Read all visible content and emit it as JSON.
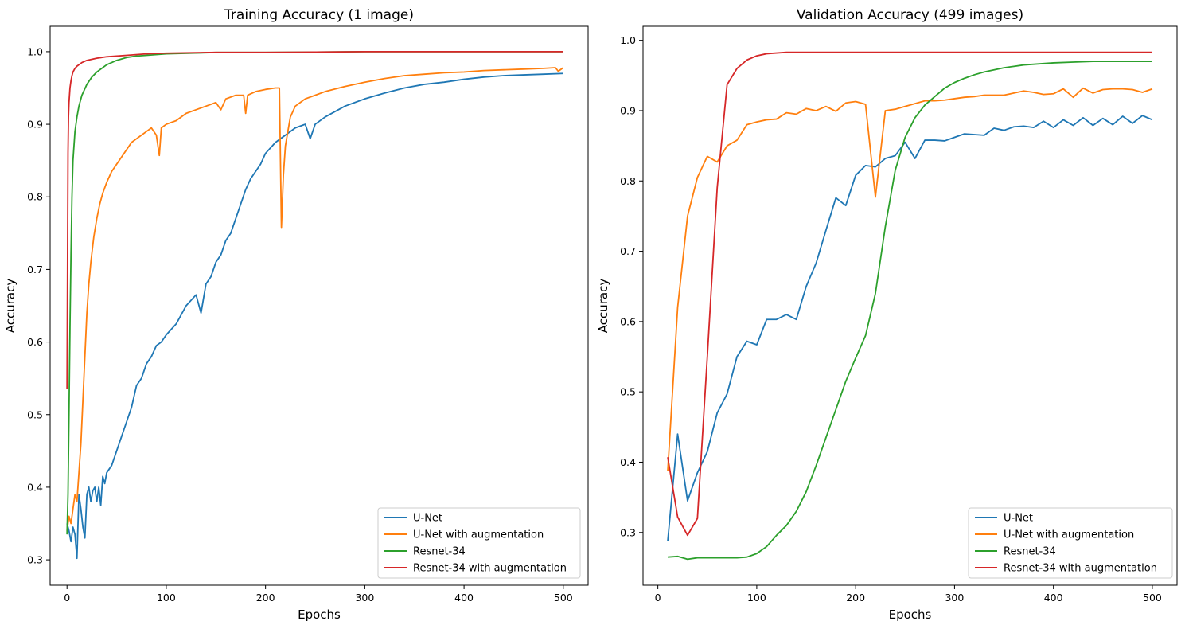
{
  "chart_data": [
    {
      "type": "line",
      "title": "Training Accuracy (1 image)",
      "xlabel": "Epochs",
      "ylabel": "Accuracy",
      "xlim": [
        -17,
        525
      ],
      "ylim": [
        0.265,
        1.035
      ],
      "xticks": [
        0,
        100,
        200,
        300,
        400,
        500
      ],
      "xtick_labels": [
        "0",
        "100",
        "200",
        "300",
        "400",
        "500"
      ],
      "yticks": [
        0.3,
        0.4,
        0.5,
        0.6,
        0.7,
        0.8,
        0.9,
        1.0
      ],
      "ytick_labels": [
        "0.3",
        "0.4",
        "0.5",
        "0.6",
        "0.7",
        "0.8",
        "0.9",
        "1.0"
      ],
      "grid": false,
      "legend": "lower-right",
      "series": [
        {
          "name": "U-Net",
          "color": "#1f77b4",
          "x": [
            0,
            2,
            4,
            6,
            8,
            10,
            12,
            14,
            16,
            18,
            20,
            22,
            24,
            26,
            28,
            30,
            32,
            34,
            36,
            38,
            40,
            45,
            50,
            55,
            60,
            65,
            70,
            75,
            80,
            85,
            90,
            95,
            100,
            110,
            120,
            130,
            135,
            140,
            145,
            150,
            155,
            160,
            165,
            170,
            175,
            180,
            185,
            190,
            195,
            200,
            210,
            220,
            230,
            240,
            245,
            250,
            260,
            280,
            300,
            320,
            340,
            360,
            380,
            400,
            420,
            440,
            460,
            480,
            500
          ],
          "y": [
            0.35,
            0.34,
            0.325,
            0.345,
            0.335,
            0.302,
            0.39,
            0.37,
            0.345,
            0.33,
            0.39,
            0.4,
            0.38,
            0.395,
            0.4,
            0.38,
            0.4,
            0.375,
            0.415,
            0.405,
            0.42,
            0.43,
            0.45,
            0.47,
            0.49,
            0.51,
            0.54,
            0.55,
            0.57,
            0.58,
            0.595,
            0.6,
            0.61,
            0.625,
            0.65,
            0.665,
            0.64,
            0.68,
            0.69,
            0.71,
            0.72,
            0.74,
            0.75,
            0.77,
            0.79,
            0.81,
            0.825,
            0.835,
            0.845,
            0.86,
            0.875,
            0.885,
            0.895,
            0.9,
            0.88,
            0.9,
            0.91,
            0.925,
            0.935,
            0.943,
            0.95,
            0.955,
            0.958,
            0.962,
            0.965,
            0.967,
            0.968,
            0.969,
            0.97
          ]
        },
        {
          "name": "U-Net with augmentation",
          "color": "#ff7f0e",
          "x": [
            0,
            2,
            4,
            6,
            8,
            10,
            12,
            14,
            16,
            18,
            20,
            22,
            24,
            27,
            30,
            33,
            36,
            40,
            45,
            50,
            55,
            60,
            65,
            70,
            75,
            80,
            85,
            90,
            93,
            95,
            100,
            110,
            120,
            130,
            140,
            150,
            155,
            160,
            170,
            178,
            180,
            182,
            190,
            200,
            210,
            214,
            216,
            218,
            220,
            225,
            230,
            240,
            250,
            260,
            280,
            300,
            320,
            340,
            360,
            380,
            400,
            420,
            440,
            460,
            480,
            492,
            495,
            500
          ],
          "y": [
            0.34,
            0.36,
            0.35,
            0.37,
            0.39,
            0.38,
            0.42,
            0.46,
            0.52,
            0.58,
            0.64,
            0.68,
            0.71,
            0.745,
            0.77,
            0.79,
            0.805,
            0.82,
            0.835,
            0.845,
            0.855,
            0.865,
            0.875,
            0.88,
            0.885,
            0.89,
            0.895,
            0.885,
            0.857,
            0.895,
            0.9,
            0.905,
            0.915,
            0.92,
            0.925,
            0.93,
            0.92,
            0.935,
            0.94,
            0.94,
            0.915,
            0.94,
            0.945,
            0.948,
            0.95,
            0.95,
            0.758,
            0.83,
            0.87,
            0.91,
            0.925,
            0.935,
            0.94,
            0.945,
            0.952,
            0.958,
            0.963,
            0.967,
            0.969,
            0.971,
            0.972,
            0.974,
            0.975,
            0.976,
            0.977,
            0.978,
            0.973,
            0.978
          ]
        },
        {
          "name": "Resnet-34",
          "color": "#2ca02c",
          "x": [
            0,
            1,
            2,
            3,
            4,
            5,
            6,
            8,
            10,
            12,
            15,
            20,
            25,
            30,
            40,
            50,
            60,
            70,
            80,
            100,
            150,
            200,
            300,
            400,
            500
          ],
          "y": [
            0.335,
            0.39,
            0.5,
            0.62,
            0.72,
            0.8,
            0.85,
            0.89,
            0.91,
            0.925,
            0.94,
            0.955,
            0.965,
            0.972,
            0.982,
            0.988,
            0.992,
            0.994,
            0.995,
            0.997,
            0.999,
            0.999,
            1.0,
            1.0,
            1.0
          ]
        },
        {
          "name": "Resnet-34 with augmentation",
          "color": "#d62728",
          "x": [
            0,
            0.5,
            1,
            1.5,
            2,
            3,
            4,
            5,
            6,
            8,
            10,
            15,
            20,
            30,
            40,
            60,
            80,
            100,
            150,
            200,
            300,
            400,
            500
          ],
          "y": [
            0.535,
            0.7,
            0.86,
            0.91,
            0.93,
            0.95,
            0.96,
            0.967,
            0.972,
            0.977,
            0.98,
            0.985,
            0.988,
            0.991,
            0.993,
            0.995,
            0.997,
            0.998,
            0.999,
            0.999,
            1.0,
            1.0,
            1.0
          ]
        }
      ]
    },
    {
      "type": "line",
      "title": "Validation Accuracy (499 images)",
      "xlabel": "Epochs",
      "ylabel": "Accuracy",
      "xlim": [
        -15,
        525
      ],
      "ylim": [
        0.225,
        1.02
      ],
      "xticks": [
        0,
        100,
        200,
        300,
        400,
        500
      ],
      "xtick_labels": [
        "0",
        "100",
        "200",
        "300",
        "400",
        "500"
      ],
      "yticks": [
        0.3,
        0.4,
        0.5,
        0.6,
        0.7,
        0.8,
        0.9,
        1.0
      ],
      "ytick_labels": [
        "0.3",
        "0.4",
        "0.5",
        "0.6",
        "0.7",
        "0.8",
        "0.9",
        "1.0"
      ],
      "grid": false,
      "legend": "lower-right",
      "series": [
        {
          "name": "U-Net",
          "color": "#1f77b4",
          "x": [
            10,
            20,
            30,
            40,
            50,
            60,
            70,
            80,
            90,
            100,
            110,
            120,
            130,
            140,
            150,
            160,
            170,
            180,
            190,
            200,
            210,
            220,
            230,
            240,
            250,
            260,
            270,
            280,
            290,
            300,
            310,
            320,
            330,
            340,
            350,
            360,
            370,
            380,
            390,
            400,
            410,
            420,
            430,
            440,
            450,
            460,
            470,
            480,
            490,
            500
          ],
          "y": [
            0.288,
            0.44,
            0.345,
            0.385,
            0.415,
            0.47,
            0.497,
            0.55,
            0.572,
            0.567,
            0.603,
            0.603,
            0.61,
            0.603,
            0.65,
            0.683,
            0.73,
            0.776,
            0.765,
            0.808,
            0.822,
            0.82,
            0.832,
            0.836,
            0.855,
            0.832,
            0.858,
            0.858,
            0.857,
            0.862,
            0.867,
            0.866,
            0.865,
            0.875,
            0.872,
            0.877,
            0.878,
            0.876,
            0.885,
            0.876,
            0.887,
            0.879,
            0.89,
            0.879,
            0.889,
            0.88,
            0.892,
            0.882,
            0.893,
            0.887
          ]
        },
        {
          "name": "U-Net with augmentation",
          "color": "#ff7f0e",
          "x": [
            10,
            20,
            30,
            40,
            50,
            60,
            70,
            80,
            90,
            100,
            110,
            120,
            130,
            140,
            150,
            160,
            170,
            180,
            190,
            200,
            210,
            220,
            230,
            240,
            250,
            260,
            270,
            280,
            290,
            300,
            310,
            320,
            330,
            340,
            350,
            360,
            370,
            380,
            390,
            400,
            410,
            420,
            430,
            440,
            450,
            460,
            470,
            480,
            490,
            500
          ],
          "y": [
            0.388,
            0.62,
            0.75,
            0.805,
            0.835,
            0.827,
            0.85,
            0.858,
            0.88,
            0.884,
            0.887,
            0.888,
            0.897,
            0.895,
            0.903,
            0.9,
            0.906,
            0.899,
            0.911,
            0.913,
            0.909,
            0.777,
            0.9,
            0.902,
            0.906,
            0.91,
            0.914,
            0.914,
            0.915,
            0.917,
            0.919,
            0.92,
            0.922,
            0.922,
            0.922,
            0.925,
            0.928,
            0.926,
            0.923,
            0.924,
            0.931,
            0.919,
            0.932,
            0.925,
            0.93,
            0.931,
            0.931,
            0.93,
            0.926,
            0.931
          ]
        },
        {
          "name": "Resnet-34",
          "color": "#2ca02c",
          "x": [
            10,
            20,
            30,
            40,
            50,
            60,
            70,
            80,
            90,
            100,
            110,
            120,
            130,
            140,
            150,
            160,
            170,
            180,
            190,
            200,
            210,
            220,
            230,
            240,
            250,
            260,
            270,
            280,
            290,
            300,
            310,
            320,
            330,
            340,
            350,
            360,
            370,
            380,
            390,
            400,
            420,
            440,
            460,
            480,
            500
          ],
          "y": [
            0.265,
            0.266,
            0.262,
            0.264,
            0.264,
            0.264,
            0.264,
            0.264,
            0.265,
            0.27,
            0.28,
            0.296,
            0.31,
            0.33,
            0.358,
            0.395,
            0.435,
            0.475,
            0.515,
            0.548,
            0.58,
            0.64,
            0.735,
            0.815,
            0.862,
            0.89,
            0.908,
            0.92,
            0.932,
            0.94,
            0.946,
            0.951,
            0.955,
            0.958,
            0.961,
            0.963,
            0.965,
            0.966,
            0.967,
            0.968,
            0.969,
            0.97,
            0.97,
            0.97,
            0.97
          ]
        },
        {
          "name": "Resnet-34 with augmentation",
          "color": "#d62728",
          "x": [
            10,
            20,
            30,
            40,
            50,
            60,
            70,
            80,
            90,
            100,
            110,
            120,
            130,
            140,
            160,
            200,
            250,
            300,
            350,
            400,
            450,
            500
          ],
          "y": [
            0.407,
            0.322,
            0.296,
            0.32,
            0.55,
            0.79,
            0.937,
            0.96,
            0.972,
            0.978,
            0.981,
            0.982,
            0.983,
            0.983,
            0.983,
            0.983,
            0.983,
            0.983,
            0.983,
            0.983,
            0.983,
            0.983
          ]
        }
      ]
    }
  ]
}
